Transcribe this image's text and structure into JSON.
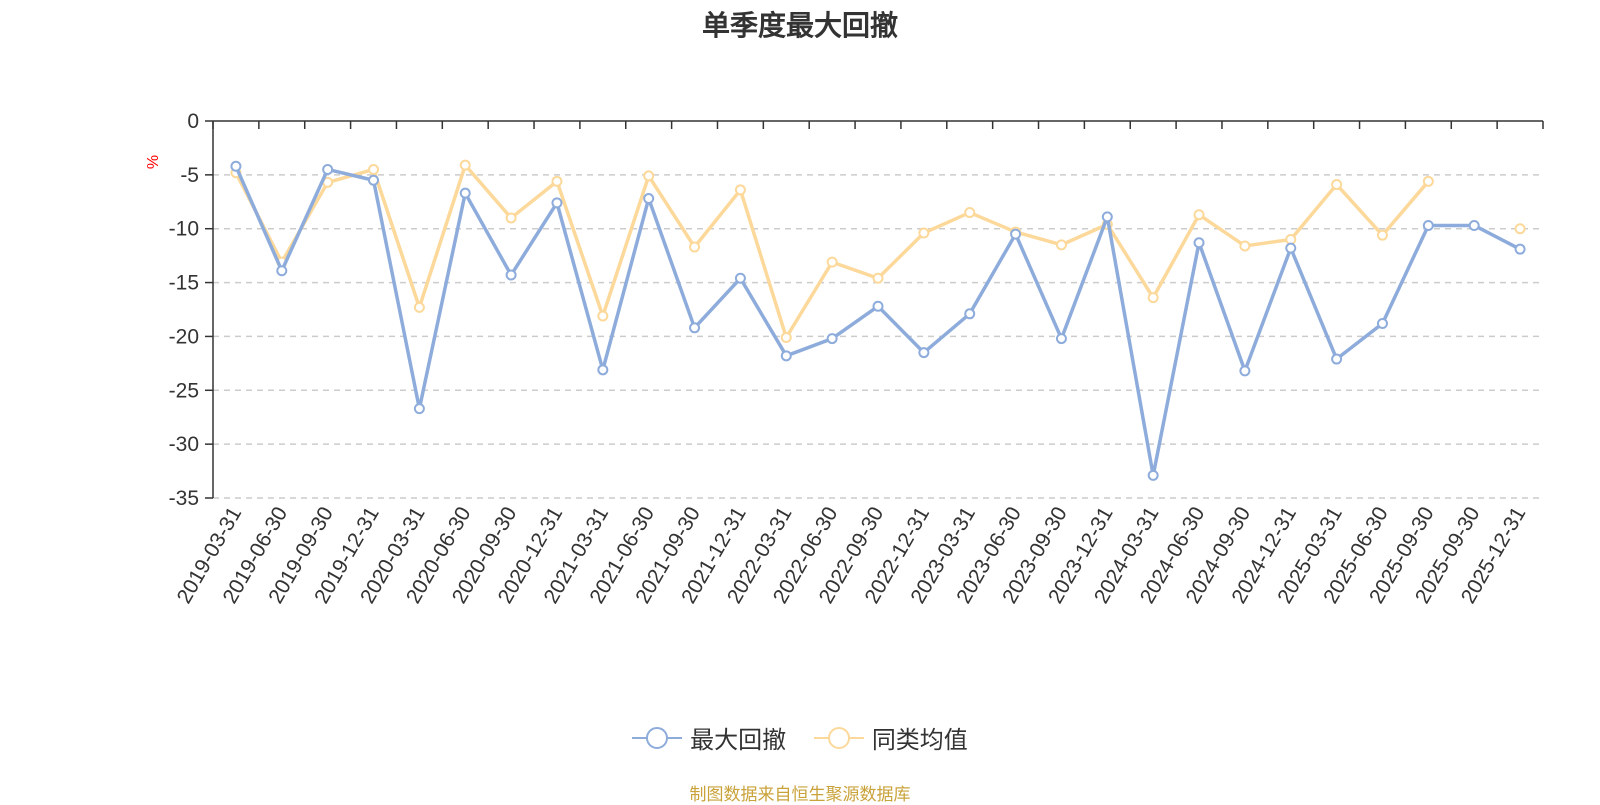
{
  "chart_data": {
    "type": "line",
    "title": "单季度最大回撤",
    "ylabel": "%",
    "ylim": [
      -35,
      0
    ],
    "yticks": [
      0,
      -5,
      -10,
      -15,
      -20,
      -25,
      -30,
      -35
    ],
    "grid": true,
    "legend_position": "bottom-center",
    "categories": [
      "2019-03-31",
      "2019-06-30",
      "2019-09-30",
      "2019-12-31",
      "2020-03-31",
      "2020-06-30",
      "2020-09-30",
      "2020-12-31",
      "2021-03-31",
      "2021-06-30",
      "2021-09-30",
      "2021-12-31",
      "2022-03-31",
      "2022-06-30",
      "2022-09-30",
      "2022-12-31",
      "2023-03-31",
      "2023-06-30",
      "2023-09-30",
      "2023-12-31",
      "2024-03-31",
      "2024-06-30",
      "2024-09-30",
      "2024-12-31",
      "2025-03-31",
      "2025-06-30",
      "2025-09-30",
      "2025-09-30",
      "2025-12-31"
    ],
    "series": [
      {
        "name": "最大回撤",
        "color": "#8eacdb",
        "values": [
          -4.2,
          -13.9,
          -4.5,
          -5.5,
          -26.7,
          -6.7,
          -14.3,
          -7.6,
          -23.1,
          -7.2,
          -19.2,
          -14.6,
          -21.8,
          -20.2,
          -17.2,
          -21.5,
          -17.9,
          -10.5,
          -20.2,
          -8.9,
          -32.9,
          -11.3,
          -23.2,
          -11.8,
          -22.1,
          -18.8,
          -9.7,
          -9.7,
          -11.9
        ]
      },
      {
        "name": "同类均值",
        "color": "#fcd99a",
        "values": [
          -4.8,
          -13.1,
          -5.7,
          -4.5,
          -17.3,
          -4.1,
          -9.0,
          -5.6,
          -18.1,
          -5.1,
          -11.7,
          -6.4,
          -20.1,
          -13.1,
          -14.6,
          -10.4,
          -8.5,
          -10.3,
          -11.5,
          -9.6,
          -16.4,
          -8.7,
          -11.6,
          -11.0,
          -5.9,
          -10.6,
          -5.6,
          null,
          -10.0
        ]
      }
    ],
    "source_note": "制图数据来自恒生聚源数据库"
  }
}
